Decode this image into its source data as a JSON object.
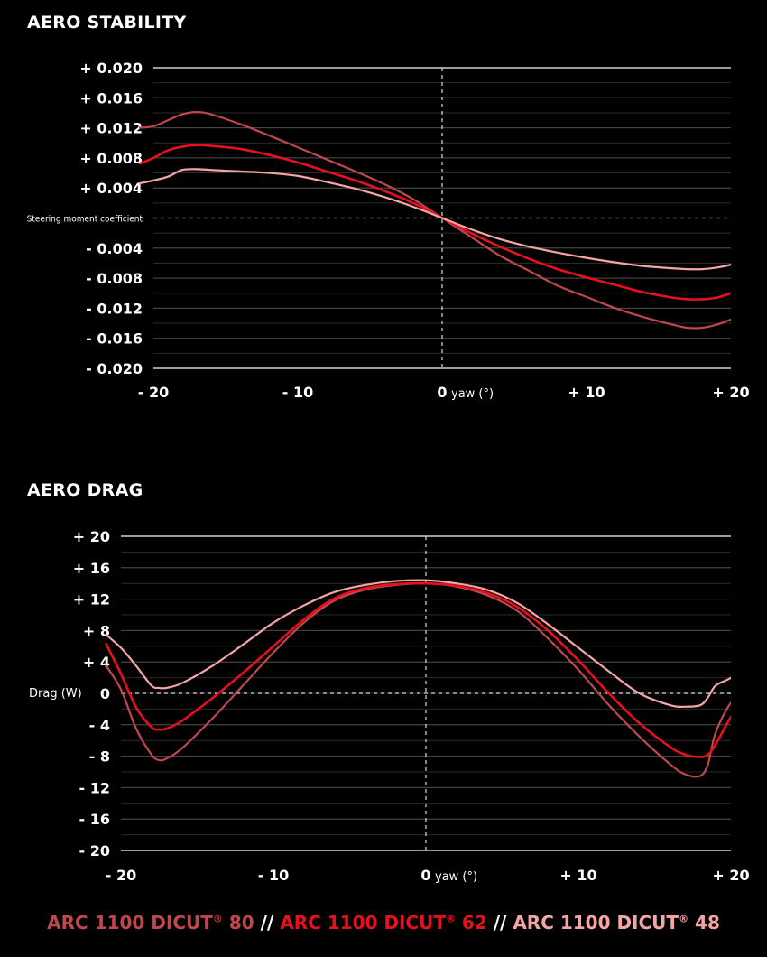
{
  "colors": {
    "background": "#000000",
    "dicut80": "#c0474d",
    "dicut62": "#e8101e",
    "dicut48": "#f4a6a6",
    "grid": "#3a3a3a",
    "axis": "#ffffff"
  },
  "legend": {
    "items": [
      {
        "label": "ARC 1100 DICUT",
        "reg": "®",
        "size": " 80",
        "color": "#c0474d"
      },
      {
        "label": "ARC 1100 DICUT",
        "reg": "®",
        "size": " 62",
        "color": "#e8101e"
      },
      {
        "label": "ARC 1100 DICUT",
        "reg": "®",
        "size": " 48",
        "color": "#f4a6a6"
      }
    ],
    "separator": " // "
  },
  "chart_data": [
    {
      "type": "line",
      "title": "AERO STABILITY",
      "ylabel": "Steering moment coefficient",
      "xlabel": "yaw (°)",
      "xlim": [
        -20,
        20
      ],
      "ylim": [
        -0.02,
        0.02
      ],
      "grid": true,
      "xticks": [
        -20,
        -10,
        0,
        10,
        20
      ],
      "xtick_labels": [
        "- 20",
        "- 10",
        "0",
        "+ 10",
        "+ 20"
      ],
      "yticks": [
        0.02,
        0.016,
        0.012,
        0.008,
        0.004,
        -0.004,
        -0.008,
        -0.012,
        -0.016,
        -0.02
      ],
      "ytick_labels": [
        "+ 0.020",
        "+ 0.016",
        "+ 0.012",
        "+ 0.008",
        "+ 0.004",
        "- 0.004",
        "- 0.008",
        "- 0.012",
        "- 0.016",
        "- 0.020"
      ],
      "series": [
        {
          "name": "ARC 1100 DICUT® 80",
          "color": "#c0474d",
          "x": [
            -21,
            -20,
            -19,
            -18,
            -17,
            -16,
            -14,
            -12,
            -10,
            -8,
            -6,
            -4,
            -2,
            0,
            2,
            4,
            6,
            8,
            10,
            12,
            14,
            16,
            17,
            18,
            19,
            20,
            21
          ],
          "y": [
            0.012,
            0.0122,
            0.013,
            0.0138,
            0.0141,
            0.0138,
            0.0125,
            0.011,
            0.0094,
            0.0078,
            0.0062,
            0.0045,
            0.0025,
            0.0,
            -0.0025,
            -0.005,
            -0.007,
            -0.009,
            -0.0105,
            -0.012,
            -0.0132,
            -0.0142,
            -0.0146,
            -0.0146,
            -0.0142,
            -0.0135,
            -0.0128
          ]
        },
        {
          "name": "ARC 1100 DICUT® 62",
          "color": "#e8101e",
          "x": [
            -21,
            -20,
            -19,
            -18,
            -17,
            -16,
            -14,
            -12,
            -10,
            -8,
            -6,
            -4,
            -2,
            0,
            2,
            4,
            6,
            8,
            10,
            12,
            14,
            16,
            17,
            18,
            19,
            20,
            21
          ],
          "y": [
            0.0072,
            0.008,
            0.009,
            0.0095,
            0.0097,
            0.0096,
            0.0092,
            0.0084,
            0.0074,
            0.0062,
            0.005,
            0.0036,
            0.002,
            0.0,
            -0.002,
            -0.0038,
            -0.0054,
            -0.0068,
            -0.0079,
            -0.0089,
            -0.0099,
            -0.0106,
            -0.0108,
            -0.0108,
            -0.0106,
            -0.01,
            -0.0092
          ]
        },
        {
          "name": "ARC 1100 DICUT® 48",
          "color": "#f4a6a6",
          "x": [
            -21,
            -20,
            -19,
            -18,
            -17,
            -16,
            -14,
            -12,
            -10,
            -8,
            -6,
            -4,
            -2,
            0,
            2,
            4,
            6,
            8,
            10,
            12,
            14,
            16,
            17,
            18,
            19,
            20,
            21
          ],
          "y": [
            0.0046,
            0.005,
            0.0055,
            0.0064,
            0.0065,
            0.0064,
            0.0062,
            0.006,
            0.0056,
            0.0048,
            0.0039,
            0.0028,
            0.0015,
            0.0,
            -0.0015,
            -0.0028,
            -0.0038,
            -0.0046,
            -0.0053,
            -0.0059,
            -0.0064,
            -0.0067,
            -0.0068,
            -0.0068,
            -0.0066,
            -0.0062,
            -0.0055
          ]
        }
      ]
    },
    {
      "type": "line",
      "title": "AERO DRAG",
      "ylabel": "Drag (W)",
      "xlabel": "yaw (°)",
      "xlim": [
        -20,
        20
      ],
      "ylim": [
        -20,
        20
      ],
      "grid": true,
      "xticks": [
        -20,
        -10,
        0,
        10,
        20
      ],
      "xtick_labels": [
        "- 20",
        "- 10",
        "0",
        "+ 10",
        "+ 20"
      ],
      "yticks": [
        20,
        16,
        12,
        8,
        4,
        -4,
        -8,
        -12,
        -16,
        -20
      ],
      "ytick_labels": [
        "+ 20",
        "+ 16",
        "+ 12",
        "+ 8",
        "+ 4",
        "- 4",
        "- 8",
        "- 12",
        "- 16",
        "- 20"
      ],
      "series": [
        {
          "name": "ARC 1100 DICUT® 80",
          "color": "#c0474d",
          "x": [
            -21,
            -20,
            -19,
            -18,
            -17.5,
            -17,
            -16,
            -14,
            -12,
            -10,
            -8,
            -6,
            -4,
            -2,
            0,
            2,
            4,
            6,
            8,
            10,
            12,
            14,
            16,
            17,
            18,
            18.5,
            19,
            20,
            21
          ],
          "y": [
            3.6,
            0.5,
            -4.5,
            -7.8,
            -8.5,
            -8.3,
            -7.0,
            -3.2,
            1.0,
            5.2,
            9.0,
            11.8,
            13.2,
            13.8,
            14.0,
            13.6,
            12.5,
            10.5,
            7.0,
            3.0,
            -1.5,
            -5.5,
            -9.0,
            -10.3,
            -10.5,
            -9.0,
            -5.0,
            -1.2,
            0.0
          ]
        },
        {
          "name": "ARC 1100 DICUT® 62",
          "color": "#e8101e",
          "x": [
            -21,
            -20,
            -19,
            -18,
            -17.5,
            -17,
            -16,
            -14,
            -12,
            -10,
            -8,
            -6,
            -4,
            -2,
            0,
            2,
            4,
            6,
            8,
            10,
            12,
            14,
            16,
            17,
            18,
            18.5,
            19,
            20,
            21
          ],
          "y": [
            6.4,
            2.5,
            -1.8,
            -4.3,
            -4.6,
            -4.5,
            -3.5,
            -0.6,
            2.6,
            6.0,
            9.4,
            12.1,
            13.4,
            13.9,
            14.0,
            13.7,
            12.8,
            11.0,
            8.0,
            4.2,
            0.0,
            -3.8,
            -6.8,
            -7.8,
            -8.1,
            -7.8,
            -6.5,
            -3.0,
            0.0
          ]
        },
        {
          "name": "ARC 1100 DICUT® 48",
          "color": "#f4a6a6",
          "x": [
            -21,
            -20,
            -19,
            -18,
            -17.5,
            -17,
            -16,
            -14,
            -12,
            -10,
            -8,
            -6,
            -4,
            -2,
            0,
            2,
            4,
            6,
            8,
            10,
            12,
            14,
            16,
            17,
            18,
            18.5,
            19,
            20,
            21
          ],
          "y": [
            7.5,
            5.8,
            3.5,
            1.0,
            0.7,
            0.7,
            1.3,
            3.5,
            6.2,
            9.0,
            11.2,
            12.9,
            13.8,
            14.3,
            14.4,
            14.0,
            13.2,
            11.5,
            8.8,
            5.8,
            2.8,
            0.0,
            -1.5,
            -1.7,
            -1.5,
            -0.5,
            1.0,
            2.0,
            3.8
          ]
        }
      ]
    }
  ]
}
